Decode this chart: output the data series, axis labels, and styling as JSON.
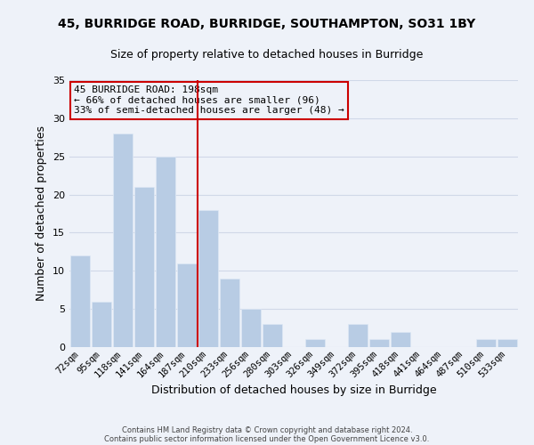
{
  "title1": "45, BURRIDGE ROAD, BURRIDGE, SOUTHAMPTON, SO31 1BY",
  "title2": "Size of property relative to detached houses in Burridge",
  "xlabel": "Distribution of detached houses by size in Burridge",
  "ylabel": "Number of detached properties",
  "categories": [
    "72sqm",
    "95sqm",
    "118sqm",
    "141sqm",
    "164sqm",
    "187sqm",
    "210sqm",
    "233sqm",
    "256sqm",
    "280sqm",
    "303sqm",
    "326sqm",
    "349sqm",
    "372sqm",
    "395sqm",
    "418sqm",
    "441sqm",
    "464sqm",
    "487sqm",
    "510sqm",
    "533sqm"
  ],
  "values": [
    12,
    6,
    28,
    21,
    25,
    11,
    18,
    9,
    5,
    3,
    0,
    1,
    0,
    3,
    1,
    2,
    0,
    0,
    0,
    1,
    1
  ],
  "bar_color": "#b8cce4",
  "bar_edge_color": "#dde8f5",
  "reference_line_color": "#cc0000",
  "annotation_text": "45 BURRIDGE ROAD: 198sqm\n← 66% of detached houses are smaller (96)\n33% of semi-detached houses are larger (48) →",
  "annotation_box_edge_color": "#cc0000",
  "ylim": [
    0,
    35
  ],
  "yticks": [
    0,
    5,
    10,
    15,
    20,
    25,
    30,
    35
  ],
  "footer1": "Contains HM Land Registry data © Crown copyright and database right 2024.",
  "footer2": "Contains public sector information licensed under the Open Government Licence v3.0.",
  "background_color": "#eef2f9",
  "grid_color": "#d0d8e8",
  "title1_fontsize": 10,
  "title2_fontsize": 9
}
